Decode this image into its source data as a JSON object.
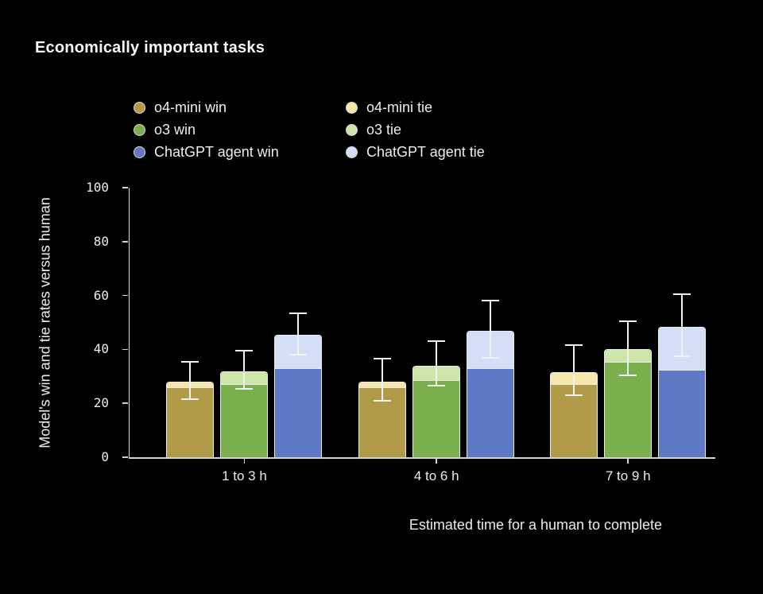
{
  "title": "Economically important tasks",
  "legend": {
    "columns": [
      [
        {
          "label": "o4-mini win",
          "color": "#b19a48"
        },
        {
          "label": "o3 win",
          "color": "#79b04d"
        },
        {
          "label": "ChatGPT agent win",
          "color": "#5e7ac5"
        }
      ],
      [
        {
          "label": "o4-mini tie",
          "color": "#f5e7a9"
        },
        {
          "label": "o3 tie",
          "color": "#cbe6a8"
        },
        {
          "label": "ChatGPT agent tie",
          "color": "#d3dff7"
        }
      ]
    ]
  },
  "chart_data": {
    "type": "bar",
    "stacked": true,
    "title": "Economically important tasks",
    "categories": [
      "1 to 3 h",
      "4 to 6 h",
      "7 to 9 h"
    ],
    "xlabel": "Estimated time for a human to complete",
    "ylabel": "Model's win and tie rates versus human",
    "ylim": [
      0,
      100
    ],
    "yticks": [
      0,
      20,
      40,
      60,
      80,
      100
    ],
    "grid": false,
    "legend_position": "top",
    "error_bars": true,
    "series": [
      {
        "name": "o4-mini",
        "win_color": "#b19a48",
        "tie_color": "#f5e7a9",
        "win": [
          26,
          26,
          27
        ],
        "tie": [
          2,
          2,
          4.5
        ],
        "err_low": [
          21.5,
          21,
          23
        ],
        "err_high": [
          35.5,
          36.5,
          41.5
        ]
      },
      {
        "name": "o3",
        "win_color": "#79b04d",
        "tie_color": "#cbe6a8",
        "win": [
          27,
          28.5,
          35.5
        ],
        "tie": [
          5,
          5.5,
          4.5
        ],
        "err_low": [
          25.5,
          26.5,
          30.5
        ],
        "err_high": [
          39.5,
          43,
          50.5
        ]
      },
      {
        "name": "ChatGPT agent",
        "win_color": "#5e7ac5",
        "tie_color": "#d3dff7",
        "win": [
          33,
          33,
          32.5
        ],
        "tie": [
          12.5,
          14,
          16
        ],
        "err_low": [
          38,
          37,
          37.5
        ],
        "err_high": [
          53.5,
          58,
          60.5
        ]
      }
    ]
  }
}
